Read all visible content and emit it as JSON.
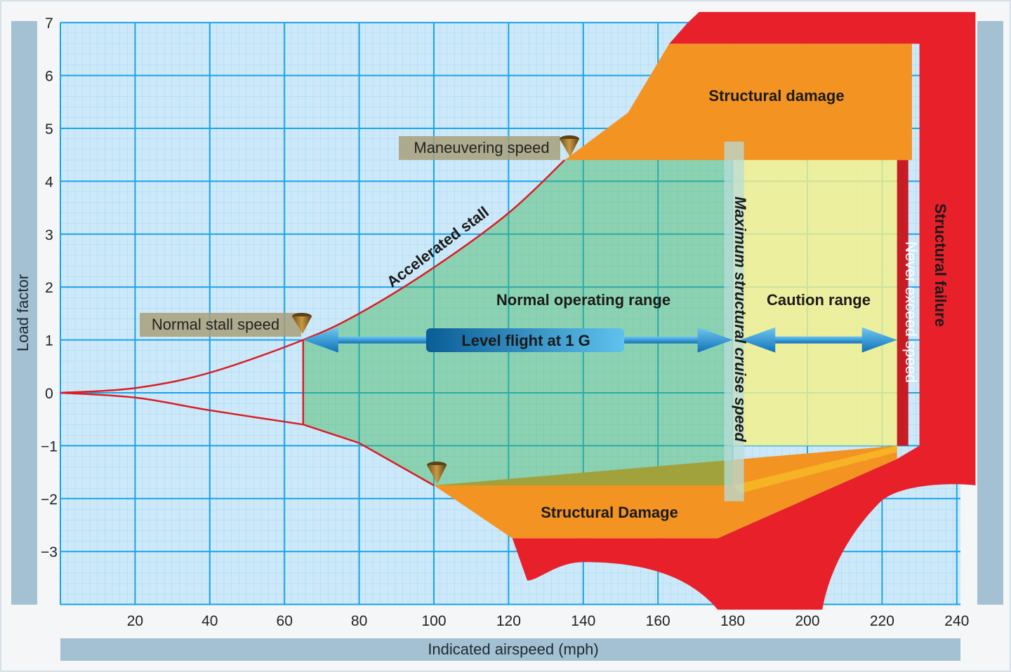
{
  "chart_data": {
    "type": "area",
    "title": "",
    "xlabel": "Indicated airspeed (mph)",
    "ylabel": "Load factor",
    "xlim": [
      0,
      240
    ],
    "ylim": [
      -4,
      7
    ],
    "x_ticks": [
      "20",
      "40",
      "60",
      "80",
      "100",
      "120",
      "140",
      "160",
      "180",
      "200",
      "220",
      "240"
    ],
    "y_ticks": [
      "7",
      "6",
      "5",
      "4",
      "3",
      "2",
      "1",
      "0",
      "−1",
      "−2",
      "−3"
    ],
    "grid": true,
    "curves": [
      {
        "name": "Accelerated stall",
        "points": [
          [
            0,
            0
          ],
          [
            20,
            0.09
          ],
          [
            40,
            0.38
          ],
          [
            65,
            1.0
          ],
          [
            80,
            1.5
          ],
          [
            100,
            2.37
          ],
          [
            120,
            3.4
          ],
          [
            135,
            4.4
          ]
        ]
      },
      {
        "name": "",
        "points": [
          [
            0,
            0
          ],
          [
            20,
            -0.09
          ],
          [
            40,
            -0.33
          ],
          [
            65,
            -0.6
          ],
          [
            80,
            -0.95
          ],
          [
            100,
            -1.75
          ]
        ]
      }
    ],
    "regions": [
      {
        "label": "Normal operating range",
        "color": "#3fb65a"
      },
      {
        "label": "Caution range",
        "color": "#f3f08a"
      },
      {
        "label": "Structural damage",
        "color": "#f39322"
      },
      {
        "label": "Structural Damage",
        "color": "#f39322"
      },
      {
        "label": "Structural failure",
        "color": "#e8202a"
      }
    ],
    "speed_markers": [
      {
        "label": "Normal stall speed",
        "x": 65,
        "y": 1
      },
      {
        "label": "Maneuvering speed",
        "x": 135,
        "y": 4.4
      },
      {
        "label": "Maximum structural cruise speed",
        "x": 180
      },
      {
        "label": "Never exceed speed",
        "x": 224
      }
    ],
    "annotations": [
      "Accelerated stall",
      "Level flight at 1 G"
    ]
  },
  "colors": {
    "grid_bg": "#cde9f9",
    "grid_major": "#1aa3e8",
    "frame": "#9fc0d2",
    "red": "#e8202a",
    "orange": "#f39322",
    "green": "#3fb65a",
    "yellow": "#f3f08a",
    "arrow": "#1a8bd1"
  }
}
